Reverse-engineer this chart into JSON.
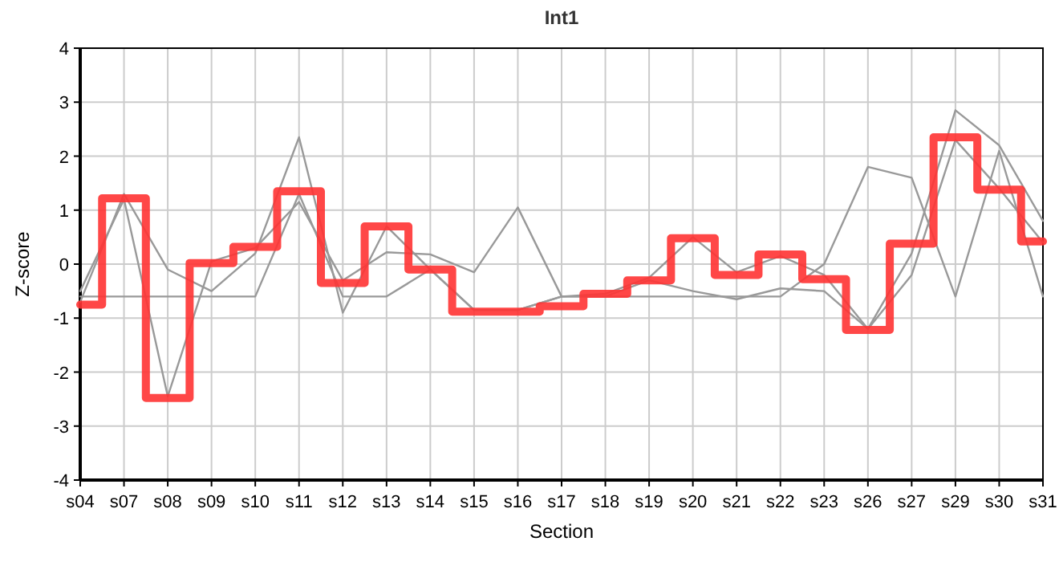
{
  "chart_data": {
    "type": "line",
    "title": "Int1",
    "xlabel": "Section",
    "ylabel": "Z-score",
    "categories": [
      "s04",
      "s07",
      "s08",
      "s09",
      "s10",
      "s11",
      "s12",
      "s13",
      "s14",
      "s15",
      "s16",
      "s17",
      "s18",
      "s19",
      "s20",
      "s21",
      "s22",
      "s23",
      "s26",
      "s27",
      "s29",
      "s30",
      "s31"
    ],
    "series": [
      {
        "color": "#999999",
        "values": [
          -0.6,
          -0.6,
          -0.6,
          -0.6,
          -0.6,
          1.3,
          -0.6,
          -0.6,
          -0.1,
          -0.85,
          -0.85,
          -0.6,
          -0.6,
          -0.6,
          -0.6,
          -0.6,
          -0.6,
          0.0,
          1.8,
          1.6,
          -0.6,
          2.1,
          -0.6
        ]
      },
      {
        "color": "#999999",
        "values": [
          -0.7,
          1.3,
          -0.1,
          -0.5,
          0.2,
          2.35,
          -0.9,
          0.7,
          -0.1,
          -0.85,
          -0.85,
          -0.6,
          -0.55,
          -0.25,
          0.5,
          -0.15,
          0.15,
          -0.2,
          -1.2,
          0.2,
          2.85,
          2.2,
          0.8
        ]
      },
      {
        "color": "#999999",
        "values": [
          -0.5,
          1.2,
          -2.45,
          0.05,
          0.3,
          1.15,
          -0.3,
          0.22,
          0.18,
          -0.15,
          1.05,
          -0.6,
          -0.6,
          -0.3,
          -0.5,
          -0.65,
          -0.45,
          -0.5,
          -1.2,
          -0.2,
          2.3,
          1.4,
          0.4
        ]
      },
      {
        "type": "step",
        "color": "#ff3333",
        "values": [
          -0.75,
          1.22,
          -2.48,
          0.02,
          0.32,
          1.35,
          -0.35,
          0.7,
          -0.1,
          -0.88,
          -0.88,
          -0.78,
          -0.55,
          -0.3,
          0.48,
          -0.2,
          0.18,
          -0.28,
          -1.22,
          0.38,
          2.35,
          1.38,
          0.42
        ]
      }
    ],
    "ylim": [
      -4,
      4
    ],
    "yticks": [
      -4,
      -3,
      -2,
      -1,
      0,
      1,
      2,
      3,
      4
    ],
    "grid": true,
    "marker": "none",
    "line_style": "solid"
  }
}
